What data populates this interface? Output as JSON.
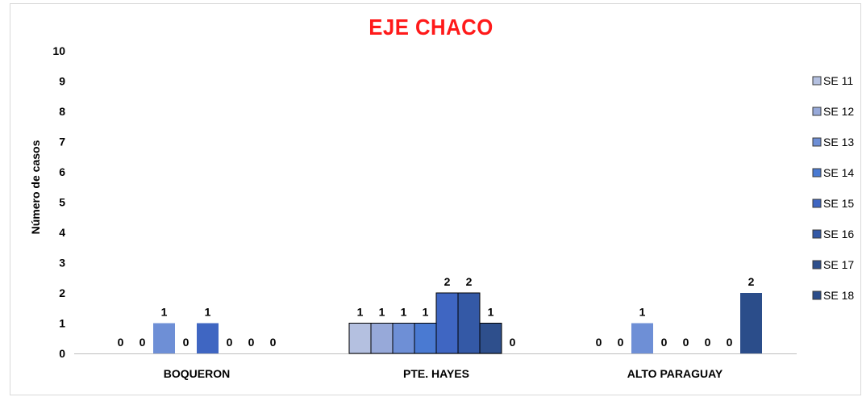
{
  "chart_data": {
    "type": "bar",
    "title": "EJE CHACO",
    "ylabel": "Número de casos",
    "xlabel": "",
    "ylim": [
      0,
      10
    ],
    "yticks": [
      "0",
      "1",
      "2",
      "3",
      "4",
      "5",
      "6",
      "7",
      "8",
      "9",
      "10"
    ],
    "categories": [
      "BOQUERON",
      "PTE. HAYES",
      "ALTO PARAGUAY"
    ],
    "legend_position": "right",
    "grid": false,
    "series": [
      {
        "name": "SE 11",
        "color": "#b4c0e0",
        "values": [
          0,
          1,
          0
        ]
      },
      {
        "name": "SE 12",
        "color": "#97a9d9",
        "values": [
          0,
          1,
          0
        ]
      },
      {
        "name": "SE 13",
        "color": "#6e8fd6",
        "values": [
          1,
          1,
          1
        ]
      },
      {
        "name": "SE 14",
        "color": "#4a7ad2",
        "values": [
          0,
          1,
          0
        ]
      },
      {
        "name": "SE 15",
        "color": "#3f66c2",
        "values": [
          1,
          2,
          0
        ]
      },
      {
        "name": "SE 16",
        "color": "#3459a6",
        "values": [
          0,
          2,
          0
        ]
      },
      {
        "name": "SE 17",
        "color": "#2e4f8c",
        "values": [
          0,
          1,
          0
        ]
      },
      {
        "name": "SE 18",
        "color": "#2b4d8a",
        "values": [
          0,
          0,
          2
        ]
      }
    ]
  }
}
